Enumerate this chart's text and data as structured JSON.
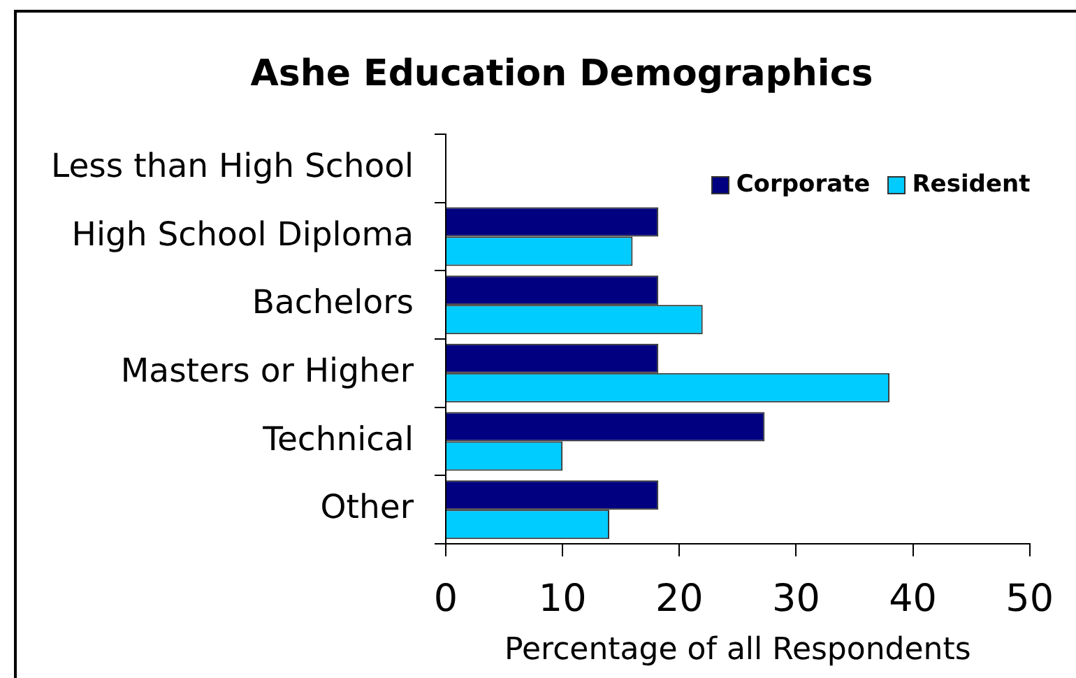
{
  "chart_data": {
    "type": "bar",
    "orientation": "horizontal",
    "title": "Ashe Education Demographics",
    "xlabel": "Percentage of all Respondents",
    "categories": [
      "Less than High School",
      "High School Diploma",
      "Bachelors",
      "Masters or Higher",
      "Technical",
      "Other"
    ],
    "series": [
      {
        "name": "Corporate",
        "color": "#000080",
        "values": [
          0,
          18.2,
          18.2,
          18.2,
          27.3,
          18.2
        ]
      },
      {
        "name": "Resident",
        "color": "#00ccff",
        "values": [
          0,
          16,
          22,
          38,
          10,
          14
        ]
      }
    ],
    "xlim": [
      0,
      50
    ],
    "xticks": [
      0,
      10,
      20,
      30,
      40,
      50
    ],
    "grid": false,
    "legend": "top right"
  }
}
